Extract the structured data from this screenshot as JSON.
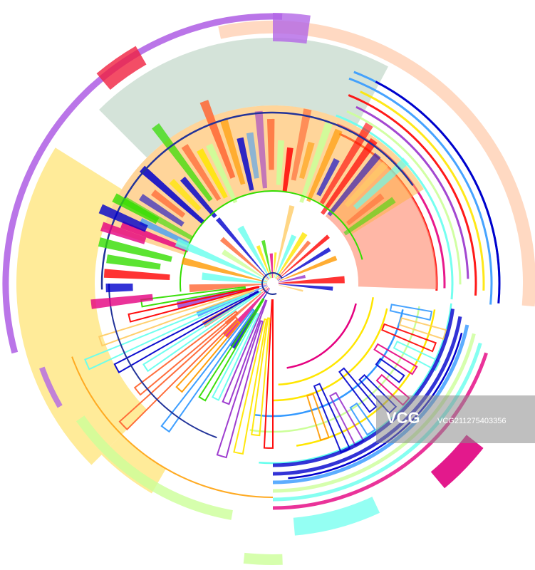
{
  "watermark": {
    "logo": "VCG",
    "id": "VCG211275403356"
  }
}
